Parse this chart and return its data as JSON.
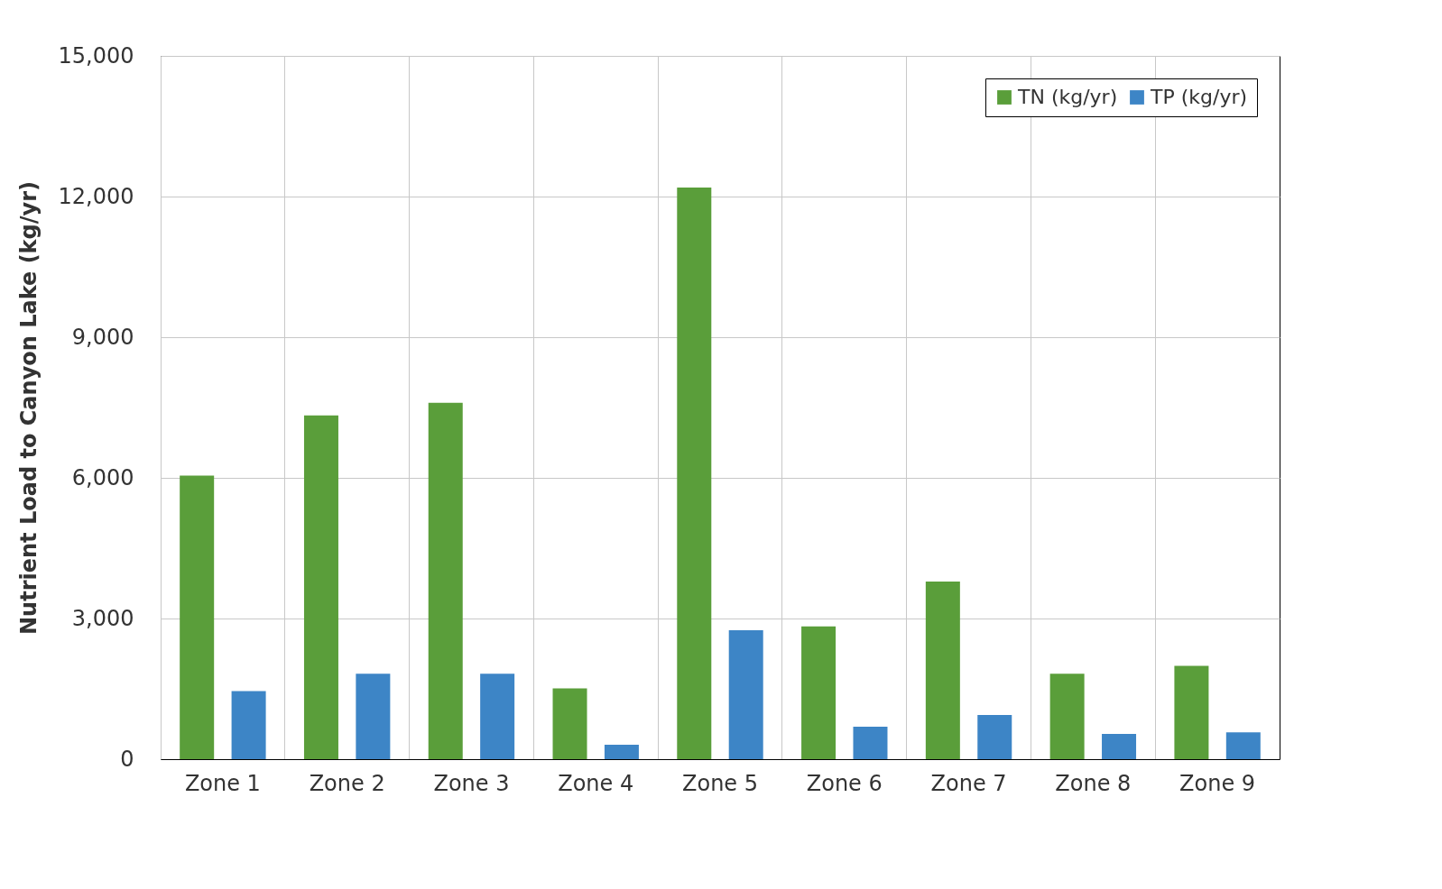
{
  "chart_data": {
    "type": "bar",
    "ylabel": "Nutrient Load to Canyon Lake (kg/yr)",
    "categories": [
      "Zone 1",
      "Zone 2",
      "Zone 3",
      "Zone 4",
      "Zone 5",
      "Zone 6",
      "Zone 7",
      "Zone 8",
      "Zone 9"
    ],
    "series": [
      {
        "name": "TN (kg/yr)",
        "color": "#5a9e3a",
        "values": [
          6050,
          7330,
          7600,
          1510,
          12190,
          2830,
          3790,
          1820,
          1990
        ]
      },
      {
        "name": "TP (kg/yr)",
        "color": "#3d85c6",
        "values": [
          1450,
          1820,
          1820,
          310,
          2750,
          690,
          940,
          540,
          570
        ]
      }
    ],
    "ylim": [
      0,
      15000
    ],
    "yticks": [
      0,
      {
        "value": 3000,
        "label": "3,000"
      },
      {
        "value": 6000,
        "label": "6,000"
      },
      {
        "value": 9000,
        "label": "9,000"
      },
      {
        "value": 12000,
        "label": "12,000"
      },
      {
        "value": 15000,
        "label": "15,000"
      }
    ],
    "grid": true,
    "legend": "top right"
  }
}
